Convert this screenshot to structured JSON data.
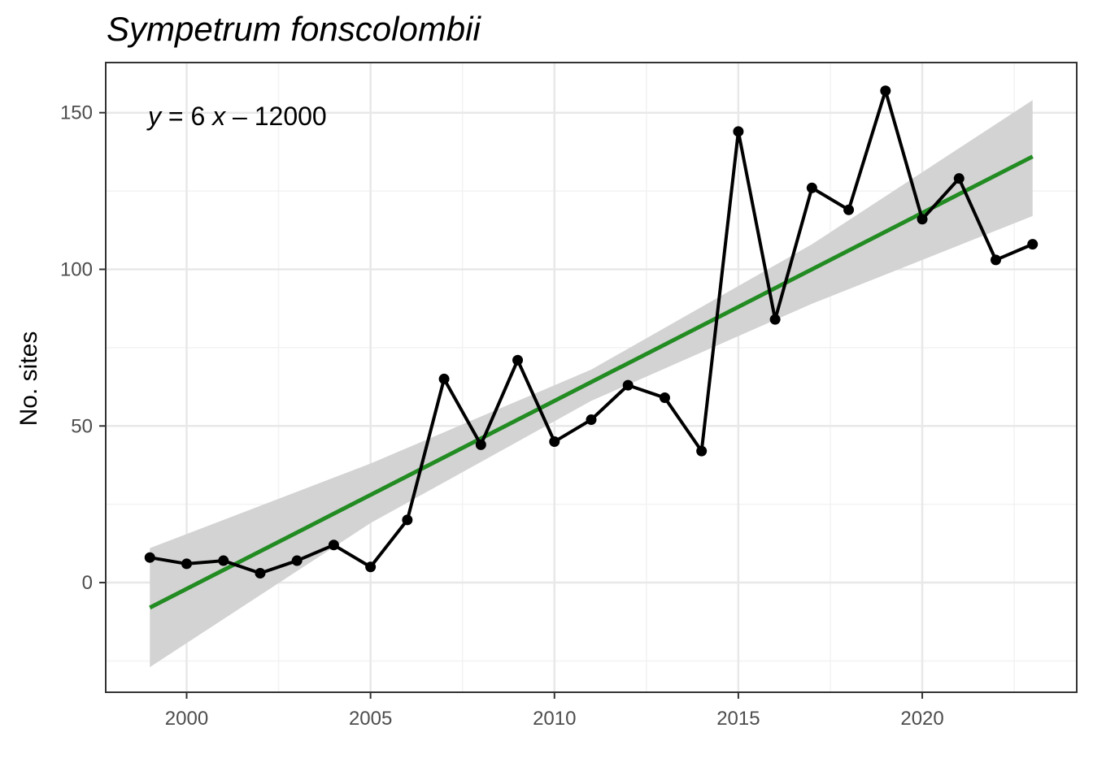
{
  "chart_data": {
    "type": "line",
    "title": "Sympetrum fonscolombii",
    "xlabel": "",
    "ylabel": "No. sites",
    "xlim": [
      1997.8,
      2024.2
    ],
    "ylim": [
      -35,
      166
    ],
    "x_ticks": [
      2000,
      2005,
      2010,
      2015,
      2020
    ],
    "x_tick_labels": [
      "2000",
      "2005",
      "2010",
      "2015",
      "2020"
    ],
    "y_ticks": [
      0,
      50,
      100,
      150
    ],
    "y_tick_labels": [
      "0",
      "50",
      "100",
      "150"
    ],
    "grid": true,
    "annotation": {
      "y_var": "y",
      "equals": " = 6 ",
      "x_var": "x",
      "rest": " – 12000"
    },
    "series": [
      {
        "x": [
          1999,
          2000,
          2001,
          2002,
          2003,
          2004,
          2005,
          2006,
          2007,
          2008,
          2009,
          2010,
          2011,
          2012,
          2013,
          2014,
          2015,
          2016,
          2017,
          2018,
          2019,
          2020,
          2021,
          2022,
          2023
        ],
        "values": [
          8,
          6,
          7,
          3,
          7,
          12,
          5,
          20,
          65,
          44,
          71,
          45,
          52,
          63,
          59,
          42,
          144,
          84,
          126,
          119,
          157,
          116,
          129,
          103,
          108
        ]
      }
    ],
    "trend_line": {
      "x": [
        1999,
        2023
      ],
      "y": [
        -8,
        136
      ]
    },
    "confidence_band": {
      "x": [
        1999,
        2005,
        2011,
        2017,
        2023
      ],
      "lower": [
        -27,
        19,
        58,
        89,
        117
      ],
      "upper": [
        11,
        38,
        68,
        108,
        154
      ]
    },
    "colors": {
      "line": "#000000",
      "trend": "#228B22",
      "band": "#d3d3d3",
      "grid_major": "#e8e8e8",
      "grid_minor": "#f2f2f2",
      "panel_border": "#333333"
    }
  }
}
